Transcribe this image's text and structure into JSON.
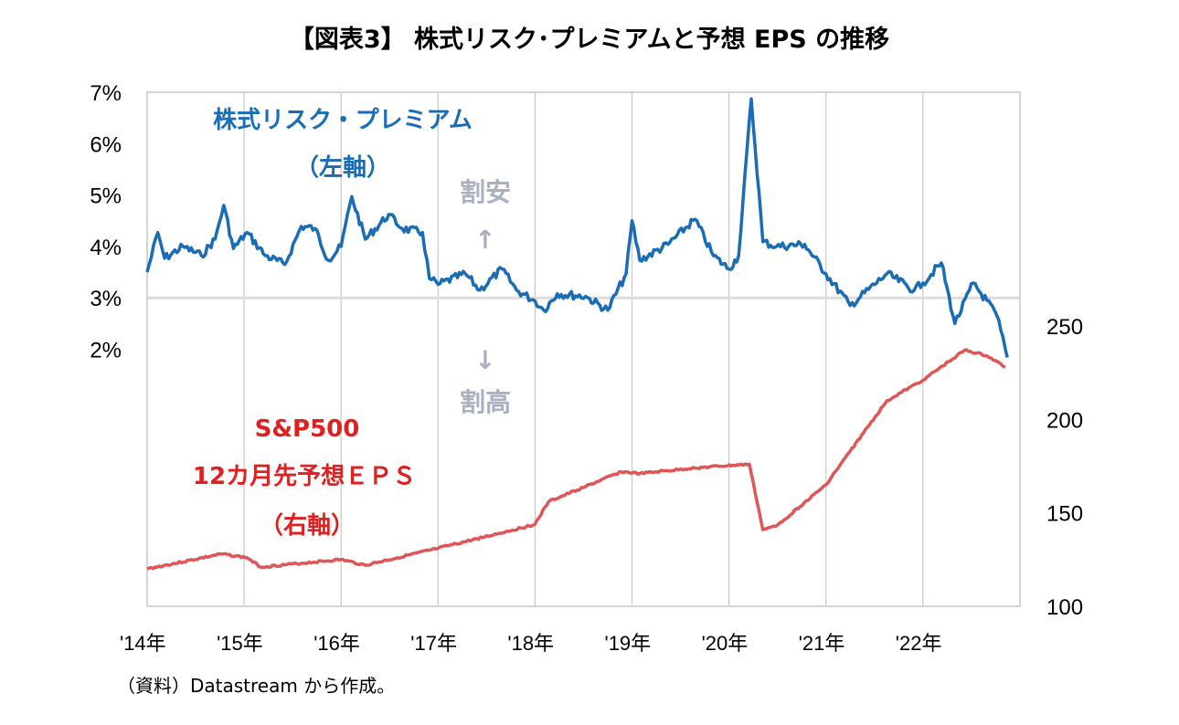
{
  "chart_data": {
    "type": "line",
    "title": "【図表3】 株式リスク･プレミアムと予想 EPS の推移",
    "source_note": "（資料）Datastream から作成。",
    "x_tick_labels": [
      "'14年",
      "'15年",
      "'16年",
      "'17年",
      "'18年",
      "'19年",
      "'20年",
      "'21年",
      "'22年"
    ],
    "x_tick_years": [
      2014,
      2015,
      2016,
      2017,
      2018,
      2019,
      2020,
      2021,
      2022
    ],
    "xlim": [
      2014.0,
      2022.9
    ],
    "y_left": {
      "tick_labels": [
        "7%",
        "6%",
        "5%",
        "4%",
        "3%",
        "2%"
      ],
      "tick_values": [
        7,
        6,
        5,
        4,
        3,
        2
      ],
      "range": [
        -3,
        7
      ],
      "reference_line": 3
    },
    "y_right": {
      "tick_labels": [
        "250",
        "200",
        "150",
        "100"
      ],
      "tick_values": [
        250,
        200,
        150,
        100
      ],
      "range": [
        100,
        375
      ]
    },
    "grid": "vertical",
    "annotations": {
      "erp_label_line1": "株式リスク・プレミアム",
      "erp_label_line2": "（左軸）",
      "cheap_label": "割安",
      "cheap_arrow": "↑",
      "expensive_arrow": "↓",
      "expensive_label": "割高",
      "eps_label_line1": "S&P500",
      "eps_label_line2": "12カ月先予想ＥＰＳ",
      "eps_label_line3": "（右軸）"
    },
    "series": [
      {
        "name": "株式リスク・プレミアム（左軸）",
        "axis": "left",
        "color": "#1a6db4",
        "x": [
          2014.0,
          2014.11,
          2014.18,
          2014.37,
          2014.56,
          2014.7,
          2014.79,
          2014.89,
          2015.03,
          2015.22,
          2015.42,
          2015.59,
          2015.73,
          2015.87,
          2016.0,
          2016.11,
          2016.25,
          2016.49,
          2016.63,
          2016.84,
          2016.91,
          2017.0,
          2017.28,
          2017.43,
          2017.66,
          2017.81,
          2018.0,
          2018.09,
          2018.23,
          2018.52,
          2018.75,
          2018.94,
          2019.0,
          2019.08,
          2019.37,
          2019.65,
          2019.84,
          2020.0,
          2020.1,
          2020.23,
          2020.35,
          2020.49,
          2020.78,
          2021.0,
          2021.25,
          2021.63,
          2021.91,
          2022.0,
          2022.19,
          2022.33,
          2022.52,
          2022.76,
          2022.87
        ],
        "values": [
          3.5,
          4.27,
          3.77,
          4.0,
          3.82,
          4.14,
          4.8,
          3.96,
          4.27,
          3.82,
          3.65,
          4.39,
          4.35,
          3.73,
          4.0,
          4.97,
          4.14,
          4.62,
          4.35,
          4.27,
          3.38,
          3.26,
          3.47,
          3.15,
          3.56,
          3.15,
          2.94,
          2.76,
          3.08,
          3.03,
          2.76,
          3.47,
          4.5,
          3.73,
          4.04,
          4.53,
          3.82,
          3.56,
          3.82,
          6.87,
          4.09,
          4.0,
          4.04,
          3.47,
          2.85,
          3.47,
          3.15,
          3.29,
          3.68,
          2.5,
          3.29,
          2.67,
          1.84
        ]
      },
      {
        "name": "S&P500 12カ月先予想ＥＰＳ（右軸）",
        "axis": "right",
        "color": "#e05555",
        "x": [
          2014.0,
          2014.77,
          2015.03,
          2015.17,
          2016.0,
          2016.25,
          2017.0,
          2017.94,
          2018.0,
          2018.14,
          2018.52,
          2018.89,
          2019.08,
          2019.65,
          2020.21,
          2020.35,
          2020.49,
          2021.0,
          2021.39,
          2021.63,
          2022.0,
          2022.43,
          2022.66,
          2022.85
        ],
        "values": [
          120,
          128,
          126,
          121,
          125,
          122,
          131,
          143,
          144,
          156,
          164,
          172,
          171,
          174,
          176,
          141,
          143,
          165,
          193,
          210,
          221,
          237,
          234,
          228
        ]
      }
    ]
  }
}
